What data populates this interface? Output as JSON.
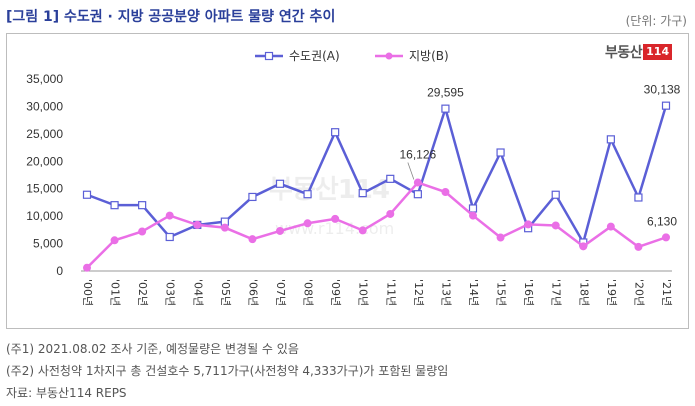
{
  "header": {
    "title": "[그림 1] 수도권 · 지방 공공분양 아파트 물량 연간 추이",
    "unit": "(단위: 가구)"
  },
  "logo": {
    "text": "부동산",
    "number": "114"
  },
  "watermark": {
    "text": "부동산114",
    "url": "www.r114.com"
  },
  "notes": [
    "(주1) 2021.08.02 조사 기준, 예정물량은 변경될 수 있음",
    "(주2) 사전청약 1차지구 총 건설호수 5,711가구(사전청약 4,333가구)가 포함된 물량임",
    "자료: 부동산114 REPS"
  ],
  "chart_data": {
    "type": "line",
    "categories": [
      "'00년",
      "'01년",
      "'02년",
      "'03년",
      "'04년",
      "'05년",
      "'06년",
      "'07년",
      "'08년",
      "'09년",
      "'10년",
      "'11년",
      "'12년",
      "'13년",
      "'14년",
      "'15년",
      "'16년",
      "'17년",
      "'18년",
      "'19년",
      "'20년",
      "'21년"
    ],
    "series": [
      {
        "name": "수도권(A)",
        "color": "#5b5fd6",
        "marker": "square",
        "values": [
          13900,
          12000,
          12000,
          6200,
          8400,
          9000,
          13500,
          15900,
          14000,
          25300,
          14200,
          16800,
          14000,
          29595,
          11400,
          21600,
          7800,
          13900,
          5200,
          24000,
          13400,
          30138
        ]
      },
      {
        "name": "지방(B)",
        "color": "#ea6fe6",
        "marker": "circle",
        "values": [
          600,
          5600,
          7200,
          10100,
          8400,
          7900,
          5800,
          7300,
          8700,
          9500,
          7400,
          10400,
          16126,
          14400,
          10100,
          6100,
          8500,
          8300,
          4500,
          8100,
          4400,
          6130
        ]
      }
    ],
    "annotations": [
      {
        "series": 0,
        "index": 13,
        "label": "29,595"
      },
      {
        "series": 0,
        "index": 21,
        "label": "30,138"
      },
      {
        "series": 1,
        "index": 12,
        "label": "16,126"
      },
      {
        "series": 1,
        "index": 21,
        "label": "6,130"
      }
    ],
    "yticks": [
      "0",
      "5,000",
      "10,000",
      "15,000",
      "20,000",
      "25,000",
      "30,000",
      "35,000"
    ],
    "ylim": [
      0,
      35000
    ],
    "legend": "top-center",
    "grid": false
  }
}
